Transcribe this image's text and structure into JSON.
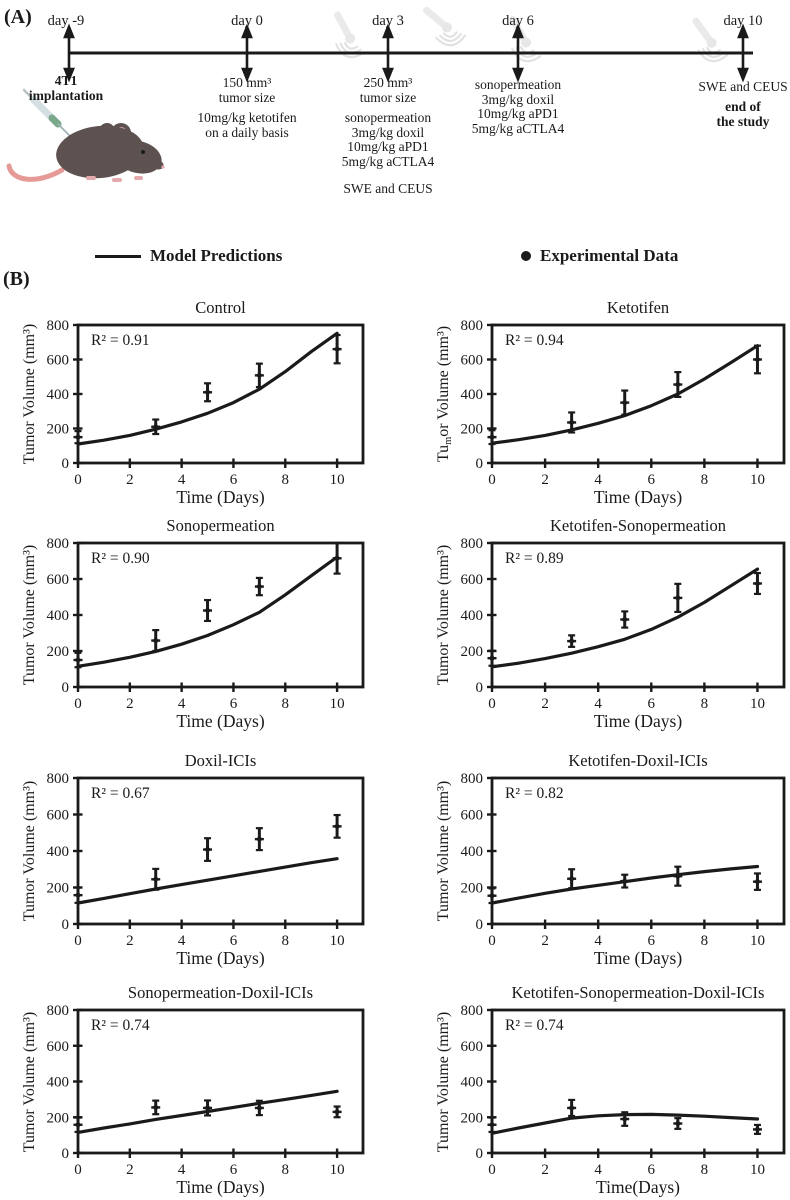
{
  "colors": {
    "ink": "#1a1a1a",
    "probe_watermark": "#e5e5e5",
    "mouse_body": "#5d5250",
    "mouse_ear": "#e5a9ad",
    "mouse_tail": "#e59a96",
    "syringe_barrel": "#d4dfe1",
    "syringe_band": "#7aa88a",
    "syringe_needle": "#9fb3b6"
  },
  "panel_a": {
    "label": "(A)",
    "events": [
      {
        "day": "day -9",
        "lines": [
          "4T1",
          "implantation"
        ]
      },
      {
        "day": "day 0",
        "lines": [
          "150 mm³",
          "tumor size"
        ],
        "lines2": [
          "10mg/kg ketotifen",
          "on a daily basis"
        ]
      },
      {
        "day": "day 3",
        "lines": [
          "250 mm³",
          "tumor size"
        ],
        "lines2": [
          "sonopermeation",
          "3mg/kg doxil",
          "10mg/kg aPD1",
          "5mg/kg aCTLA4"
        ],
        "lines3": [
          "SWE and CEUS"
        ]
      },
      {
        "day": "day 6",
        "lines": [
          "sonopermeation",
          "3mg/kg doxil",
          "10mg/kg aPD1",
          "5mg/kg aCTLA4"
        ]
      },
      {
        "day": "day 10",
        "lines": [
          "SWE and CEUS"
        ],
        "lines2": [
          "end of",
          "the study"
        ]
      }
    ]
  },
  "legend": {
    "model": "Model Predictions",
    "experimental": "Experimental Data"
  },
  "panel_b": {
    "label": "(B)"
  },
  "chart_data": [
    {
      "type": "line",
      "title": "Control",
      "r_squared_label": "R² = 0.91",
      "ylabel_parts": [
        "Tumor Volume (mm³)"
      ],
      "xlabel": "Time (Days)",
      "xlim": [
        0,
        11
      ],
      "ylim": [
        0,
        800
      ],
      "xticks": [
        0,
        2,
        4,
        6,
        8,
        10
      ],
      "yticks": [
        0,
        200,
        400,
        600,
        800
      ],
      "model": {
        "name": "Model Predictions",
        "x": [
          0,
          1,
          2,
          3,
          4,
          5,
          6,
          7,
          8,
          9,
          10
        ],
        "y": [
          110,
          132,
          160,
          196,
          238,
          288,
          350,
          428,
          530,
          645,
          752
        ]
      },
      "experimental": {
        "name": "Experimental Data",
        "x": [
          0,
          3,
          5,
          7,
          10
        ],
        "y": [
          150,
          210,
          410,
          508,
          660
        ],
        "yerr": [
          35,
          42,
          52,
          68,
          82
        ]
      }
    },
    {
      "type": "line",
      "title": "Ketotifen",
      "r_squared_label": "R² = 0.94",
      "ylabel_parts": [
        "Tu",
        "m",
        "or Volume (mm³)"
      ],
      "xlabel": "Time (Days)",
      "xlim": [
        0,
        11
      ],
      "ylim": [
        0,
        800
      ],
      "xticks": [
        0,
        2,
        4,
        6,
        8,
        10
      ],
      "yticks": [
        0,
        200,
        400,
        600,
        800
      ],
      "model": {
        "name": "Model Predictions",
        "x": [
          0,
          1,
          2,
          3,
          4,
          5,
          6,
          7,
          8,
          9,
          10
        ],
        "y": [
          115,
          135,
          160,
          192,
          230,
          275,
          332,
          400,
          487,
          582,
          680
        ]
      },
      "experimental": {
        "name": "Experimental Data",
        "x": [
          0,
          3,
          5,
          7,
          10
        ],
        "y": [
          150,
          235,
          350,
          455,
          600
        ],
        "yerr": [
          40,
          58,
          70,
          72,
          80
        ]
      }
    },
    {
      "type": "line",
      "title": "Sonopermeation",
      "r_squared_label": "R² = 0.90",
      "ylabel_parts": [
        "Tumor Volume (mm³)"
      ],
      "xlabel": "Time (Days)",
      "xlim": [
        0,
        11
      ],
      "ylim": [
        0,
        800
      ],
      "xticks": [
        0,
        2,
        4,
        6,
        8,
        10
      ],
      "yticks": [
        0,
        200,
        400,
        600,
        800
      ],
      "model": {
        "name": "Model Predictions",
        "x": [
          0,
          1,
          2,
          3,
          4,
          5,
          6,
          7,
          8,
          9,
          10
        ],
        "y": [
          115,
          138,
          165,
          198,
          238,
          286,
          346,
          415,
          512,
          618,
          722
        ]
      },
      "experimental": {
        "name": "Experimental Data",
        "x": [
          0,
          3,
          5,
          7,
          10
        ],
        "y": [
          150,
          258,
          425,
          558,
          715
        ],
        "yerr": [
          40,
          58,
          58,
          48,
          85
        ]
      }
    },
    {
      "type": "line",
      "title": "Ketotifen-Sonopermeation",
      "r_squared_label": "R² = 0.89",
      "ylabel_parts": [
        "Tumor Volume (mm³)"
      ],
      "xlabel": "Time (Days)",
      "xlim": [
        0,
        11
      ],
      "ylim": [
        0,
        800
      ],
      "xticks": [
        0,
        2,
        4,
        6,
        8,
        10
      ],
      "yticks": [
        0,
        200,
        400,
        600,
        800
      ],
      "model": {
        "name": "Model Predictions",
        "x": [
          0,
          1,
          2,
          3,
          4,
          5,
          6,
          7,
          8,
          9,
          10
        ],
        "y": [
          112,
          132,
          158,
          188,
          224,
          265,
          320,
          388,
          470,
          562,
          655
        ]
      },
      "experimental": {
        "name": "Experimental Data",
        "x": [
          0,
          3,
          5,
          7,
          10
        ],
        "y": [
          160,
          255,
          375,
          495,
          575
        ],
        "yerr": [
          42,
          32,
          45,
          78,
          58
        ]
      }
    },
    {
      "type": "line",
      "title": "Doxil-ICIs",
      "r_squared_label": "R² = 0.67",
      "ylabel_parts": [
        "Tumor Volume (mm³)"
      ],
      "xlabel": "Time (Days)",
      "xlim": [
        0,
        11
      ],
      "ylim": [
        0,
        800
      ],
      "xticks": [
        0,
        2,
        4,
        6,
        8,
        10
      ],
      "yticks": [
        0,
        200,
        400,
        600,
        800
      ],
      "model": {
        "name": "Model Predictions",
        "x": [
          0,
          1,
          2,
          3,
          4,
          5,
          6,
          7,
          8,
          9,
          10
        ],
        "y": [
          115,
          140,
          166,
          192,
          216,
          240,
          264,
          288,
          312,
          336,
          358
        ]
      },
      "experimental": {
        "name": "Experimental Data",
        "x": [
          0,
          3,
          5,
          7,
          10
        ],
        "y": [
          158,
          245,
          408,
          465,
          535
        ],
        "yerr": [
          42,
          57,
          62,
          60,
          62
        ]
      }
    },
    {
      "type": "line",
      "title": "Ketotifen-Doxil-ICIs",
      "r_squared_label": "R² = 0.82",
      "ylabel_parts": [
        "Tumor Volume (mm³)"
      ],
      "xlabel": "Time (Days)",
      "xlim": [
        0,
        11
      ],
      "ylim": [
        0,
        800
      ],
      "xticks": [
        0,
        2,
        4,
        6,
        8,
        10
      ],
      "yticks": [
        0,
        200,
        400,
        600,
        800
      ],
      "model": {
        "name": "Model Predictions",
        "x": [
          0,
          1,
          2,
          3,
          4,
          5,
          6,
          7,
          8,
          9,
          10
        ],
        "y": [
          115,
          142,
          168,
          192,
          212,
          232,
          252,
          270,
          287,
          302,
          315
        ]
      },
      "experimental": {
        "name": "Experimental Data",
        "x": [
          0,
          3,
          5,
          7,
          10
        ],
        "y": [
          155,
          248,
          235,
          262,
          232
        ],
        "yerr": [
          40,
          52,
          35,
          52,
          45
        ]
      }
    },
    {
      "type": "line",
      "title": "Sonopermeation-Doxil-ICIs",
      "r_squared_label": "R² = 0.74",
      "ylabel_parts": [
        "Tumor Volume (mm³)"
      ],
      "xlabel": "Time (Days)",
      "xlim": [
        0,
        11
      ],
      "ylim": [
        0,
        800
      ],
      "xticks": [
        0,
        2,
        4,
        6,
        8,
        10
      ],
      "yticks": [
        0,
        200,
        400,
        600,
        800
      ],
      "model": {
        "name": "Model Predictions",
        "x": [
          0,
          1,
          2,
          3,
          4,
          5,
          6,
          7,
          8,
          9,
          10
        ],
        "y": [
          115,
          140,
          163,
          188,
          210,
          232,
          255,
          278,
          300,
          322,
          345
        ]
      },
      "experimental": {
        "name": "Experimental Data",
        "x": [
          0,
          3,
          5,
          7,
          10
        ],
        "y": [
          158,
          255,
          252,
          252,
          230
        ],
        "yerr": [
          40,
          38,
          42,
          40,
          30
        ]
      }
    },
    {
      "type": "line",
      "title": "Ketotifen-Sonopermeation-Doxil-ICIs",
      "r_squared_label": "R² = 0.74",
      "ylabel_parts": [
        "Tumor Volume (mm³)"
      ],
      "xlabel": "Time(Days)",
      "xlim": [
        0,
        11
      ],
      "ylim": [
        0,
        800
      ],
      "xticks": [
        0,
        2,
        4,
        6,
        8,
        10
      ],
      "yticks": [
        0,
        200,
        400,
        600,
        800
      ],
      "model": {
        "name": "Model Predictions",
        "x": [
          0,
          1,
          2,
          3,
          4,
          5,
          6,
          7,
          8,
          9,
          10
        ],
        "y": [
          110,
          140,
          168,
          195,
          208,
          215,
          216,
          212,
          206,
          198,
          190
        ]
      },
      "experimental": {
        "name": "Experimental Data",
        "x": [
          0,
          3,
          5,
          7,
          10
        ],
        "y": [
          158,
          252,
          190,
          165,
          132
        ],
        "yerr": [
          40,
          45,
          38,
          30,
          25
        ]
      }
    }
  ]
}
